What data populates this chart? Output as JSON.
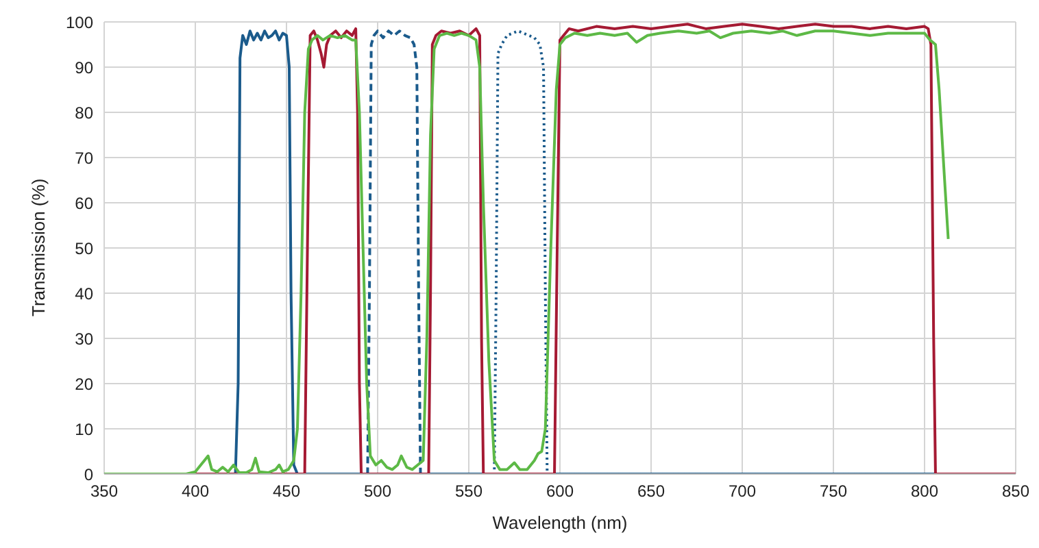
{
  "chart_data": {
    "type": "line",
    "xlabel": "Wavelength (nm)",
    "ylabel": "Transmission (%)",
    "xlim": [
      350,
      850
    ],
    "xticks": [
      350,
      400,
      450,
      500,
      550,
      600,
      650,
      700,
      750,
      800,
      850
    ],
    "ylim": [
      0,
      100
    ],
    "yticks": [
      0,
      10,
      20,
      30,
      40,
      50,
      60,
      70,
      80,
      90,
      100
    ],
    "grid": true,
    "series": [
      {
        "color": "#1b5b8c",
        "line_style": "solid",
        "x": [
          350,
          422,
          423.5,
          424.5,
          426,
          428,
          430,
          432,
          434,
          436,
          438,
          440,
          442,
          444,
          446,
          448,
          450,
          451.5,
          452.5,
          454,
          456,
          850
        ],
        "values": [
          0,
          0,
          20,
          92,
          97,
          95,
          98,
          96,
          97.5,
          96,
          98,
          96.5,
          97,
          98,
          96,
          97.5,
          97,
          90,
          40,
          2,
          0,
          0
        ]
      },
      {
        "color": "#1b5b8c",
        "line_style": "dashed",
        "x": [
          350,
          494.5,
          495.5,
          496.5,
          498,
          500,
          503,
          506,
          509,
          512,
          515,
          518,
          520,
          521.5,
          522.5,
          523.5,
          850
        ],
        "values": [
          0,
          0,
          40,
          95,
          97,
          98,
          96.5,
          98,
          97,
          98,
          97,
          96.5,
          95,
          90,
          40,
          0,
          0
        ]
      },
      {
        "color": "#1b5b8c",
        "line_style": "dotted",
        "x": [
          350,
          564,
          565,
          566,
          568,
          571,
          574,
          577,
          580,
          583,
          586,
          589,
          591,
          592,
          593,
          850
        ],
        "values": [
          0,
          0,
          40,
          93,
          95,
          97,
          97.5,
          98,
          97.5,
          97,
          96.5,
          95,
          90,
          40,
          0,
          0
        ]
      },
      {
        "color": "#a51a33",
        "line_style": "solid",
        "x": [
          350,
          460,
          461.5,
          463,
          465,
          467,
          469,
          470.5,
          472,
          474,
          477,
          480,
          483,
          486,
          488,
          489,
          490,
          491,
          528,
          529,
          530,
          532,
          535,
          540,
          545,
          550,
          554,
          556,
          557,
          558,
          597,
          598.5,
          600,
          602,
          605,
          610,
          620,
          630,
          640,
          650,
          660,
          670,
          680,
          690,
          700,
          710,
          720,
          730,
          740,
          750,
          760,
          770,
          780,
          790,
          800,
          802,
          803.5,
          805,
          806,
          850
        ],
        "values": [
          0,
          0,
          50,
          97,
          98,
          96,
          93,
          90,
          95,
          97,
          98,
          96.5,
          98,
          97,
          98.5,
          80,
          20,
          0,
          0,
          40,
          95,
          97,
          98,
          97.5,
          98,
          97,
          98.5,
          97,
          30,
          0,
          0,
          50,
          96,
          97,
          98.5,
          98,
          99,
          98.5,
          99,
          98.5,
          99,
          99.5,
          98.5,
          99,
          99.5,
          99,
          98.5,
          99,
          99.5,
          99,
          99,
          98.5,
          99,
          98.5,
          99,
          98.5,
          95,
          30,
          0,
          0
        ]
      },
      {
        "color": "#5db946",
        "line_style": "solid",
        "x": [
          350,
          395,
          400,
          403,
          405,
          407,
          409,
          412,
          415,
          418,
          421,
          424,
          428,
          431,
          433,
          435,
          440,
          444,
          446,
          448,
          451,
          454,
          456,
          458,
          460,
          462,
          464,
          467,
          470,
          474,
          478,
          482,
          486,
          488,
          490,
          492,
          494,
          496,
          499,
          502,
          505,
          508,
          511,
          513,
          516,
          519,
          522,
          525,
          527,
          529,
          531,
          534,
          538,
          542,
          546,
          550,
          554,
          556,
          558,
          561,
          564,
          567,
          571,
          575,
          578,
          582,
          586,
          588,
          590,
          592,
          595,
          598,
          600,
          603,
          608,
          615,
          622,
          630,
          637,
          642,
          648,
          655,
          665,
          675,
          682,
          688,
          695,
          705,
          715,
          722,
          730,
          740,
          750,
          760,
          770,
          780,
          790,
          800,
          803,
          806,
          808,
          811,
          813
        ],
        "values": [
          0,
          0,
          0.5,
          2,
          3,
          4,
          1,
          0.5,
          1.5,
          0.5,
          2,
          0.3,
          0.3,
          1,
          3.5,
          0.5,
          0.3,
          1,
          2,
          0.5,
          1,
          3,
          10,
          40,
          80,
          94,
          96,
          97,
          96,
          97,
          96.5,
          97,
          96,
          96,
          80,
          50,
          20,
          4,
          2,
          3,
          1.5,
          1,
          2,
          4,
          1.5,
          1,
          2,
          3,
          30,
          75,
          94,
          97,
          97.5,
          97,
          97.5,
          97,
          96,
          90,
          60,
          25,
          3,
          1,
          1,
          2.5,
          1,
          1,
          3,
          4.5,
          5,
          10,
          50,
          85,
          95,
          96.5,
          97.5,
          97,
          97.5,
          97,
          97.5,
          95.5,
          97,
          97.5,
          98,
          97.5,
          98,
          96.5,
          97.5,
          98,
          97.5,
          98,
          97,
          98,
          98,
          97.5,
          97,
          97.5,
          97.5,
          97.5,
          96,
          95,
          85,
          65,
          52
        ]
      }
    ]
  }
}
